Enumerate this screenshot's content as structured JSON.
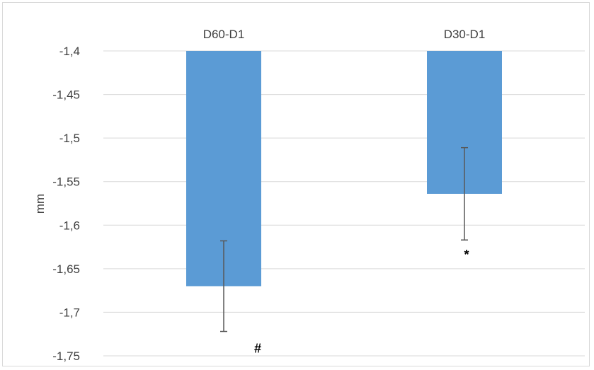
{
  "chart_data": {
    "type": "bar",
    "title": "",
    "xlabel": "",
    "ylabel": "mm",
    "ylim": [
      -1.75,
      -1.4
    ],
    "yticks": [
      -1.4,
      -1.45,
      -1.5,
      -1.55,
      -1.6,
      -1.65,
      -1.7,
      -1.75
    ],
    "ytick_labels": [
      "-1,4",
      "-1,45",
      "-1,5",
      "-1,55",
      "-1,6",
      "-1,65",
      "-1,7",
      "-1,75"
    ],
    "categories": [
      "D60-D1",
      "D30-D1"
    ],
    "values": [
      -1.67,
      -1.564
    ],
    "errors": [
      0.052,
      0.053
    ],
    "annotations": [
      "#",
      "*"
    ],
    "grid": true,
    "legend": "none",
    "colors": {
      "bar": "#5b9bd5",
      "grid": "#d9d9d9",
      "error": "#595959",
      "text": "#404040"
    }
  }
}
